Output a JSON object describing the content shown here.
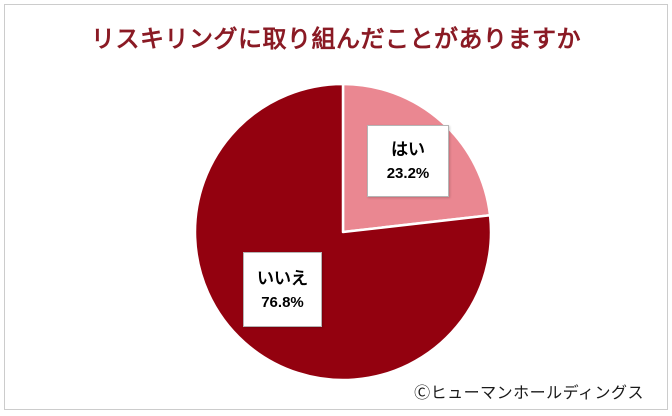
{
  "title": {
    "text": "リスキリングに取り組んだことがありますか"
  },
  "chart_data": {
    "type": "pie",
    "title": "リスキリングに取り組んだことがありますか",
    "categories": [
      "はい",
      "いいえ"
    ],
    "values": [
      23.2,
      76.8
    ],
    "unit": "%",
    "colors": [
      "#EA8791",
      "#93010F"
    ],
    "start_angle_deg": 0,
    "direction": "clockwise",
    "legend": "none",
    "data_labels": [
      {
        "category": "はい",
        "value_text": "23.2%"
      },
      {
        "category": "いいえ",
        "value_text": "76.8%"
      }
    ]
  },
  "footer": {
    "copyright": "Ⓒヒューマンホールディングス"
  },
  "ui_colors": {
    "title_text": "#8A1A24",
    "frame_border": "#CCCCCC",
    "label_box_border": "#B5B5B5",
    "slice_divider": "#FFFFFF"
  }
}
